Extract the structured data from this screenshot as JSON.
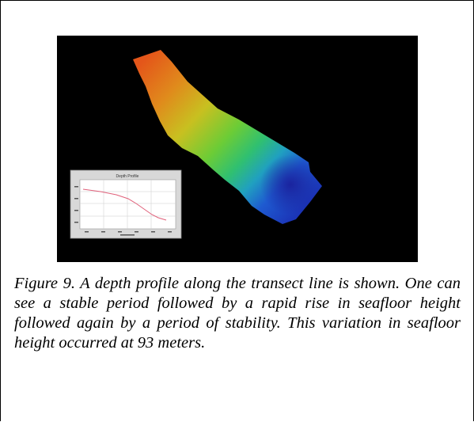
{
  "figure": {
    "inset_chart_title": "Depth Profile",
    "caption": "Figure 9. A depth profile along the transect line is shown. One can see a stable period followed by a rapid rise in seafloor height followed again by a period of stability. This variation in seafloor height occurred at 93 meters."
  },
  "colors": {
    "background": "#000000",
    "depth_shallow": "#e05a14",
    "depth_mid": "#3cc840",
    "depth_deep": "#1e28b4",
    "profile_line": "#e0607a"
  }
}
